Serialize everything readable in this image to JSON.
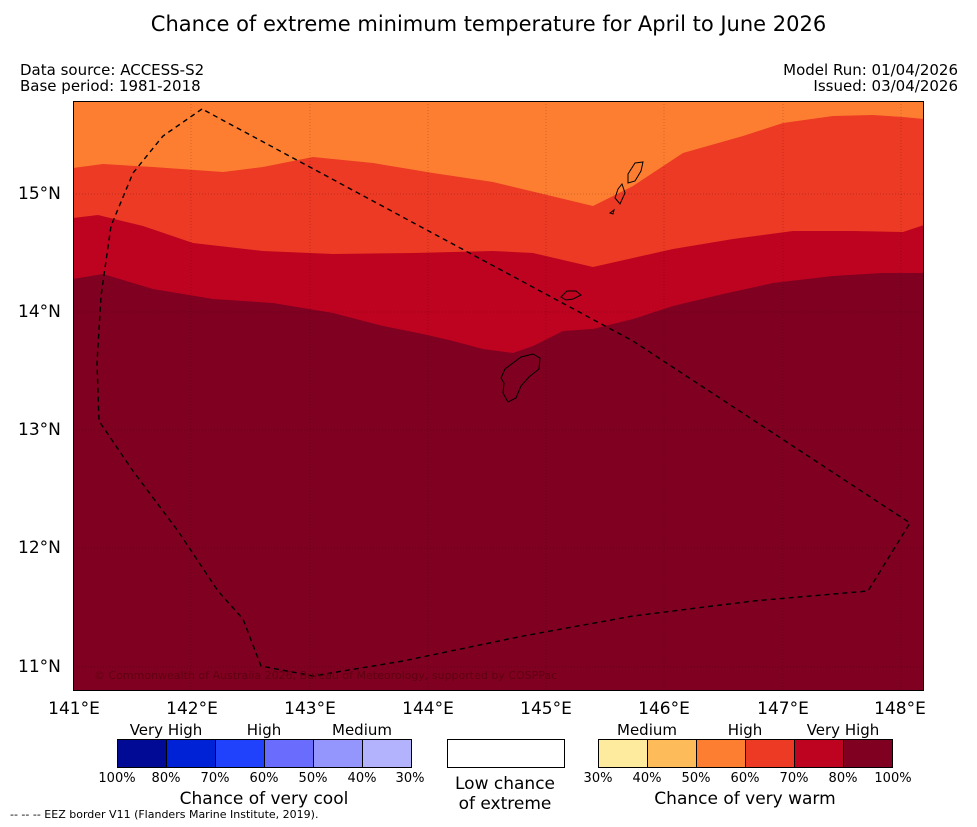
{
  "title": "Chance of extreme minimum temperature for April to June 2026",
  "meta": {
    "data_source": "Data source: ACCESS-S2",
    "base_period": "Base period: 1981-2018",
    "model_run": "Model Run: 01/04/2026",
    "issued": "Issued: 03/04/2026"
  },
  "axes": {
    "lat_ticks": [
      "15°N",
      "14°N",
      "13°N",
      "12°N",
      "11°N"
    ],
    "lon_ticks": [
      "141°E",
      "142°E",
      "143°E",
      "144°E",
      "145°E",
      "146°E",
      "147°E",
      "148°E"
    ]
  },
  "map": {
    "copyright": "© Commonwealth of Australia 2026, Bureau of Meteorology, supported by COSPPac",
    "colors": {
      "band_50_60": "#fd7e31",
      "band_60_70": "#ec3a24",
      "band_70_80": "#be0320",
      "band_80_100": "#7f0020",
      "land_outline": "#000000",
      "eez_border": "#000000"
    }
  },
  "legend": {
    "cool": {
      "levels": [
        "Very High",
        "High",
        "Medium"
      ],
      "percents": [
        "100%",
        "80%",
        "70%",
        "60%",
        "50%",
        "40%",
        "30%"
      ],
      "label": "Chance of very cool",
      "colors": [
        "#000a94",
        "#0022d6",
        "#2042fd",
        "#6a6cfd",
        "#9495fd",
        "#b3b2fd"
      ]
    },
    "neutral": {
      "label_line1": "Low chance",
      "label_line2": "of extreme",
      "color": "#ffffff"
    },
    "warm": {
      "levels": [
        "Medium",
        "High",
        "Very High"
      ],
      "percents": [
        "30%",
        "40%",
        "50%",
        "60%",
        "70%",
        "80%",
        "100%"
      ],
      "label": "Chance of very warm",
      "colors": [
        "#feeb9d",
        "#fdbb5a",
        "#fd7e31",
        "#ec3a24",
        "#be0320",
        "#7f0020"
      ]
    }
  },
  "footnote": "--  --  -- EEZ border V11 (Flanders Marine Institute, 2019)."
}
